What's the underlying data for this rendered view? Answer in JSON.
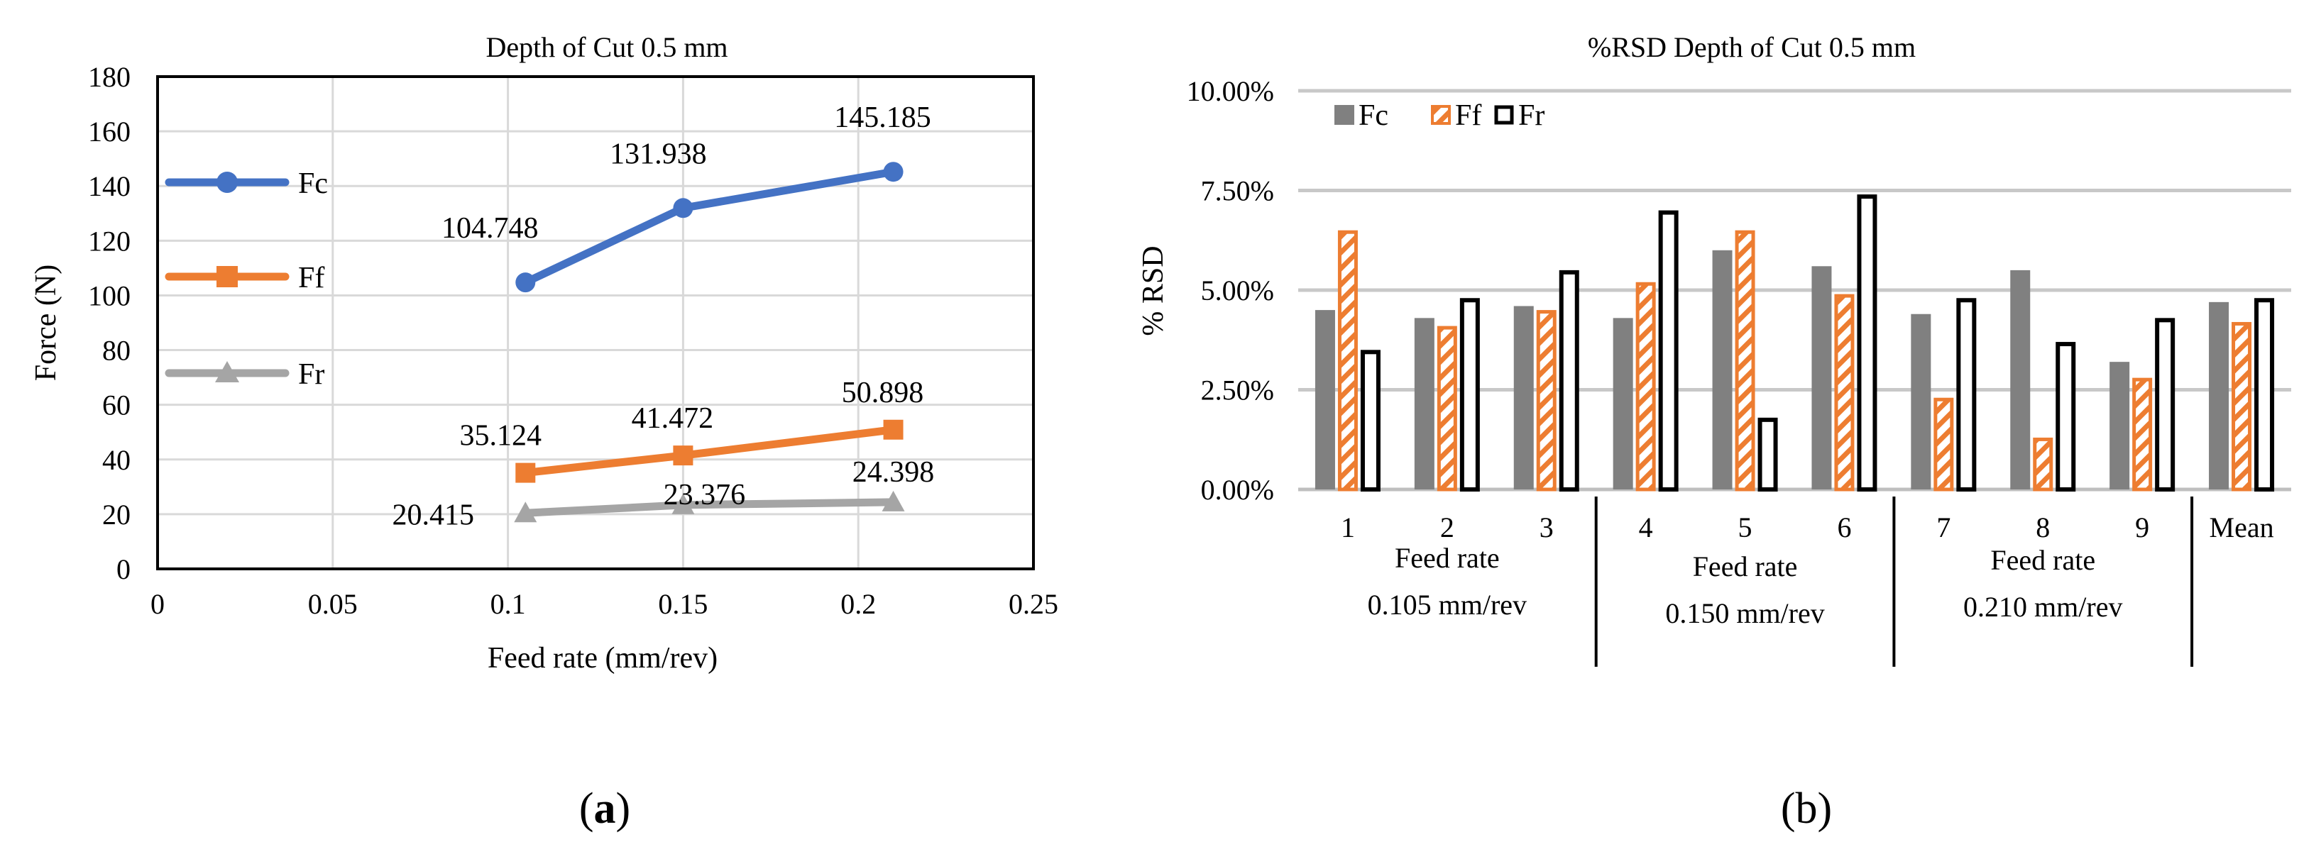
{
  "chart_data": [
    {
      "type": "line",
      "title": "Depth of Cut 0.5 mm",
      "xlabel": "Feed rate (mm/rev)",
      "ylabel": "Force (N)",
      "xlim": [
        0,
        0.25
      ],
      "ylim": [
        0,
        180
      ],
      "xticks": [
        0,
        0.05,
        0.1,
        0.15,
        0.2,
        0.25
      ],
      "xtick_labels": [
        "0",
        "0.05",
        "0.1",
        "0.15",
        "0.2",
        "0.25"
      ],
      "yticks": [
        0,
        20,
        40,
        60,
        80,
        100,
        120,
        140,
        160,
        180
      ],
      "ytick_labels": [
        "0",
        "20",
        "40",
        "60",
        "80",
        "100",
        "120",
        "140",
        "160",
        "180"
      ],
      "grid": true,
      "legend_position": "left",
      "x": [
        0.105,
        0.15,
        0.21
      ],
      "series": [
        {
          "name": "Fc",
          "color": "#4472C4",
          "marker": "circle",
          "values": [
            104.748,
            131.938,
            145.185
          ],
          "labels": [
            "104.748",
            "131.938",
            "145.185"
          ]
        },
        {
          "name": "Ff",
          "color": "#ED7D31",
          "marker": "square",
          "values": [
            35.124,
            41.472,
            50.898
          ],
          "labels": [
            "35.124",
            "41.472",
            "50.898"
          ]
        },
        {
          "name": "Fr",
          "color": "#A5A5A5",
          "marker": "triangle",
          "values": [
            20.415,
            23.376,
            24.398
          ],
          "labels": [
            "20.415",
            "23.376",
            "24.398"
          ]
        }
      ]
    },
    {
      "type": "bar",
      "title": "%RSD Depth of Cut 0.5 mm",
      "ylabel": "% RSD",
      "ylim": [
        0,
        0.1
      ],
      "yticks": [
        0,
        0.025,
        0.05,
        0.075,
        0.1
      ],
      "ytick_labels": [
        "0.00%",
        "2.50%",
        "5.00%",
        "7.50%",
        "10.00%"
      ],
      "grid": true,
      "legend_position": "top-left",
      "categories": [
        "1",
        "2",
        "3",
        "4",
        "5",
        "6",
        "7",
        "8",
        "9",
        "Mean"
      ],
      "groups": [
        {
          "line1": "Feed rate",
          "line2": "0.105 mm/rev",
          "members": [
            "1",
            "2",
            "3"
          ]
        },
        {
          "line1": "Feed rate",
          "line2": "0.150 mm/rev",
          "members": [
            "4",
            "5",
            "6"
          ]
        },
        {
          "line1": "Feed rate",
          "line2": "0.210 mm/rev",
          "members": [
            "7",
            "8",
            "9"
          ]
        }
      ],
      "series": [
        {
          "name": "Fc",
          "color": "#808080",
          "style": "solid",
          "values": [
            0.045,
            0.043,
            0.046,
            0.043,
            0.06,
            0.056,
            0.044,
            0.055,
            0.032,
            0.047
          ]
        },
        {
          "name": "Ff",
          "color": "#ED7D31",
          "style": "hatched",
          "values": [
            0.065,
            0.041,
            0.045,
            0.052,
            0.065,
            0.049,
            0.023,
            0.013,
            0.028,
            0.042
          ]
        },
        {
          "name": "Fr",
          "color": "#000000",
          "style": "outline",
          "values": [
            0.035,
            0.048,
            0.055,
            0.07,
            0.018,
            0.074,
            0.048,
            0.037,
            0.043,
            0.048
          ]
        }
      ]
    }
  ],
  "captions": {
    "a_open": "(",
    "a_letter": "a",
    "a_close": ")",
    "b": "(b)"
  }
}
